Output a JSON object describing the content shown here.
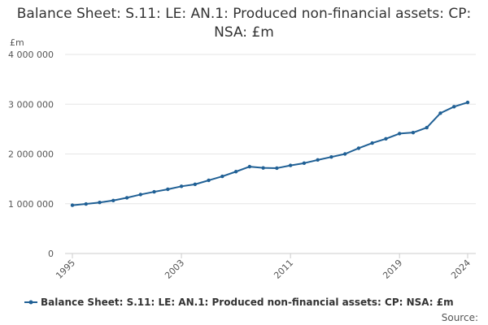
{
  "chart_data": {
    "type": "line",
    "title": "Balance Sheet: S.11: LE: AN.1: Produced non-financial assets: CP: NSA: £m",
    "ylabel": "£m",
    "xlabel": "",
    "ylim": [
      0,
      4000000
    ],
    "y_ticks": [
      0,
      1000000,
      2000000,
      3000000,
      4000000
    ],
    "y_tick_labels": [
      "0",
      "1 000 000",
      "2 000 000",
      "3 000 000",
      "4 000 000"
    ],
    "x_ticks": [
      1995,
      2003,
      2011,
      2019,
      2024
    ],
    "x_tick_labels": [
      "1995",
      "2003",
      "2011",
      "2019",
      "2024"
    ],
    "grid": true,
    "legend_position": "bottom",
    "series": [
      {
        "name": "Balance Sheet: S.11: LE: AN.1: Produced non-financial assets: CP: NSA: £m",
        "color": "#206095",
        "x": [
          1995,
          1996,
          1997,
          1998,
          1999,
          2000,
          2001,
          2002,
          2003,
          2004,
          2005,
          2006,
          2007,
          2008,
          2009,
          2010,
          2011,
          2012,
          2013,
          2014,
          2015,
          2016,
          2017,
          2018,
          2019,
          2020,
          2021,
          2022,
          2023,
          2024
        ],
        "values": [
          970000,
          995000,
          1025000,
          1065000,
          1120000,
          1185000,
          1240000,
          1290000,
          1350000,
          1390000,
          1470000,
          1550000,
          1645000,
          1745000,
          1720000,
          1715000,
          1770000,
          1815000,
          1880000,
          1940000,
          2000000,
          2115000,
          2220000,
          2305000,
          2410000,
          2430000,
          2530000,
          2820000,
          2950000,
          3035000
        ]
      }
    ],
    "source_label": "Source:"
  }
}
